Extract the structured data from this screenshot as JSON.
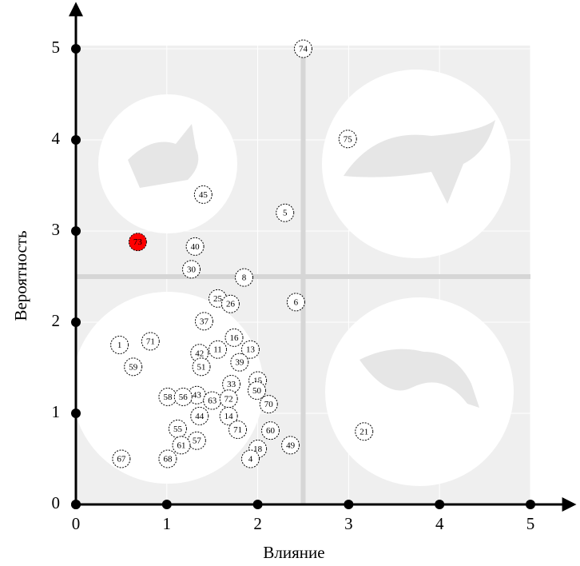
{
  "chart_data": {
    "type": "scatter",
    "x_label": "Влияние",
    "y_label": "Вероятность",
    "xlim": [
      0,
      5
    ],
    "ylim": [
      0,
      5
    ],
    "xticks": [
      0,
      1,
      2,
      3,
      4,
      5
    ],
    "yticks": [
      0,
      1,
      2,
      3,
      4,
      5
    ],
    "grid": true,
    "xline": 2.5,
    "yline": 2.5,
    "series": [
      {
        "color": "#ffffff",
        "labels": [
          "74",
          "75",
          "45",
          "5",
          "40",
          "30",
          "8",
          "6",
          "25",
          "26",
          "37",
          "16",
          "1",
          "71",
          "11",
          "13",
          "42",
          "39",
          "59",
          "51",
          "33",
          "15",
          "50",
          "43",
          "58",
          "56",
          "63",
          "72",
          "70",
          "44",
          "14",
          "55",
          "71",
          "60",
          "21",
          "57",
          "61",
          "49",
          "18",
          "4",
          "67",
          "68"
        ],
        "x": [
          2.5,
          2.99,
          1.4,
          2.3,
          1.31,
          1.27,
          1.85,
          2.42,
          1.56,
          1.7,
          1.41,
          1.74,
          0.48,
          0.82,
          1.56,
          1.92,
          1.36,
          1.8,
          0.63,
          1.38,
          1.71,
          2.0,
          1.99,
          1.33,
          1.01,
          1.18,
          1.5,
          1.68,
          2.12,
          1.36,
          1.68,
          1.12,
          1.78,
          2.14,
          3.17,
          1.33,
          1.16,
          2.36,
          2.0,
          1.92,
          0.5,
          1.01
        ],
        "values": [
          5.0,
          4.01,
          3.4,
          3.2,
          2.83,
          2.58,
          2.49,
          2.22,
          2.26,
          2.2,
          2.01,
          1.83,
          1.75,
          1.79,
          1.7,
          1.7,
          1.66,
          1.56,
          1.51,
          1.51,
          1.32,
          1.36,
          1.25,
          1.2,
          1.18,
          1.18,
          1.14,
          1.16,
          1.1,
          0.97,
          0.97,
          0.83,
          0.82,
          0.81,
          0.8,
          0.7,
          0.65,
          0.65,
          0.61,
          0.5,
          0.5,
          0.5
        ]
      },
      {
        "color": "#ff0000",
        "labels": [
          "73"
        ],
        "x": [
          0.68
        ],
        "values": [
          2.88
        ]
      }
    ]
  }
}
